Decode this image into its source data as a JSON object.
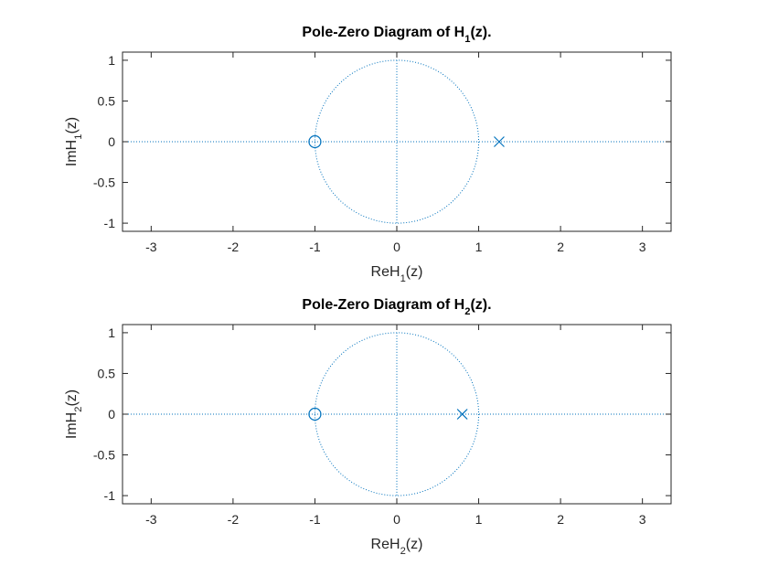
{
  "chart_data": [
    {
      "type": "scatter",
      "title": {
        "main": "Pole-Zero Diagram of H",
        "sub": "1",
        "suffix": "(z)."
      },
      "xlabel": {
        "main": "ReH",
        "sub": "1",
        "suffix": "(z)"
      },
      "ylabel": {
        "main": "ImH",
        "sub": "1",
        "suffix": "(z)"
      },
      "xlim": [
        -3.35,
        3.35
      ],
      "ylim": [
        -1.1,
        1.1
      ],
      "xticks": [
        -3,
        -2,
        -1,
        0,
        1,
        2,
        3
      ],
      "yticks": [
        -1,
        -0.5,
        0,
        0.5,
        1
      ],
      "xtick_labels": [
        "-3",
        "-2",
        "-1",
        "0",
        "1",
        "2",
        "3"
      ],
      "ytick_labels": [
        "-1",
        "-0.5",
        "0",
        "0.5",
        "1"
      ],
      "unit_circle": true,
      "zeros": [
        {
          "x": -1,
          "y": 0
        }
      ],
      "poles": [
        {
          "x": 1.25,
          "y": 0
        }
      ],
      "color": "#0072bd"
    },
    {
      "type": "scatter",
      "title": {
        "main": "Pole-Zero Diagram of H",
        "sub": "2",
        "suffix": "(z)."
      },
      "xlabel": {
        "main": "ReH",
        "sub": "2",
        "suffix": "(z)"
      },
      "ylabel": {
        "main": "ImH",
        "sub": "2",
        "suffix": "(z)"
      },
      "xlim": [
        -3.35,
        3.35
      ],
      "ylim": [
        -1.1,
        1.1
      ],
      "xticks": [
        -3,
        -2,
        -1,
        0,
        1,
        2,
        3
      ],
      "yticks": [
        -1,
        -0.5,
        0,
        0.5,
        1
      ],
      "xtick_labels": [
        "-3",
        "-2",
        "-1",
        "0",
        "1",
        "2",
        "3"
      ],
      "ytick_labels": [
        "-1",
        "-0.5",
        "0",
        "0.5",
        "1"
      ],
      "unit_circle": true,
      "zeros": [
        {
          "x": -1,
          "y": 0
        }
      ],
      "poles": [
        {
          "x": 0.8,
          "y": 0
        }
      ],
      "color": "#0072bd"
    }
  ]
}
